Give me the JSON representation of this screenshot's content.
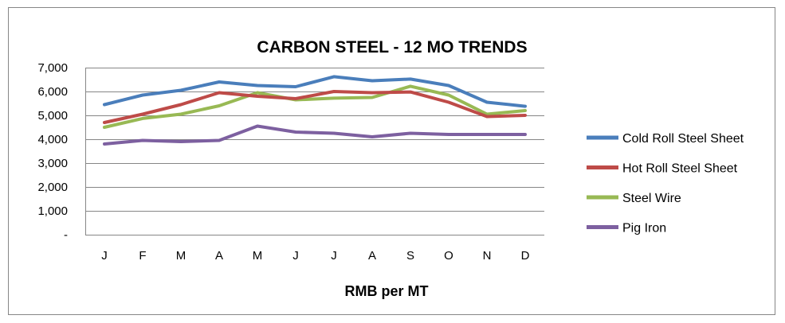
{
  "chart_data": {
    "type": "line",
    "title": "CARBON STEEL - 12 MO TRENDS",
    "xlabel": "RMB per MT",
    "ylabel": "",
    "categories": [
      "J",
      "F",
      "M",
      "A",
      "M",
      "J",
      "J",
      "A",
      "S",
      "O",
      "N",
      "D"
    ],
    "ylim": [
      0,
      7000
    ],
    "yticks": [
      0,
      1000,
      2000,
      3000,
      4000,
      5000,
      6000,
      7000
    ],
    "ytick_labels": [
      "-",
      "1,000",
      "2,000",
      "3,000",
      "4,000",
      "5,000",
      "6,000",
      "7,000"
    ],
    "grid": "horizontal",
    "legend_position": "right",
    "series": [
      {
        "name": "Cold Roll Steel Sheet",
        "color": "#4a7ebb",
        "values": [
          5450,
          5850,
          6050,
          6400,
          6250,
          6200,
          6620,
          6450,
          6520,
          6250,
          5550,
          5380
        ]
      },
      {
        "name": "Hot Roll Steel Sheet",
        "color": "#be4b48",
        "values": [
          4700,
          5050,
          5450,
          5950,
          5800,
          5700,
          6000,
          5950,
          5980,
          5550,
          4950,
          5000
        ]
      },
      {
        "name": "Steel Wire",
        "color": "#98b954",
        "values": [
          4500,
          4870,
          5050,
          5400,
          5950,
          5650,
          5720,
          5750,
          6220,
          5850,
          5050,
          5200
        ]
      },
      {
        "name": "Pig Iron",
        "color": "#7d60a0",
        "values": [
          3800,
          3950,
          3900,
          3950,
          4550,
          4300,
          4250,
          4100,
          4250,
          4200,
          4200,
          4200
        ]
      }
    ]
  }
}
